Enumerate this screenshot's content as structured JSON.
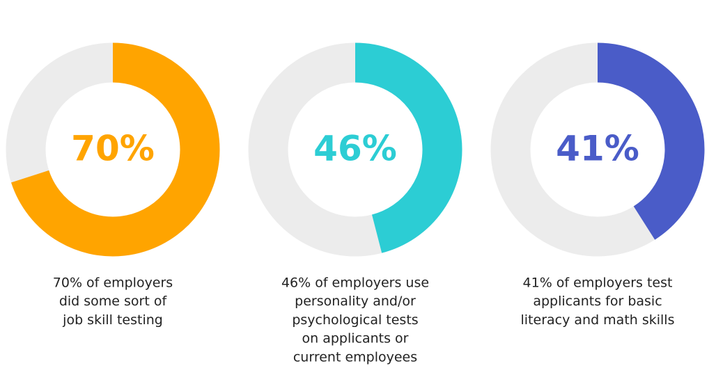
{
  "chart_data": [
    {
      "type": "donut",
      "values": [
        70
      ],
      "value_labels": [
        "70%"
      ],
      "color": "#ffa400",
      "caption": [
        "70% of employers",
        "did some sort of",
        "job skill testing"
      ]
    },
    {
      "type": "donut",
      "values": [
        46
      ],
      "value_labels": [
        "46%"
      ],
      "color": "#2ccdd4",
      "caption": [
        "46% of employers use",
        "personality and/or",
        "psychological tests",
        "on applicants or",
        "current employees"
      ]
    },
    {
      "type": "donut",
      "values": [
        41
      ],
      "value_labels": [
        "41%"
      ],
      "color": "#4a5cc8",
      "caption": [
        "41% of employers test",
        "applicants for basic",
        "literacy and math skills"
      ]
    }
  ]
}
